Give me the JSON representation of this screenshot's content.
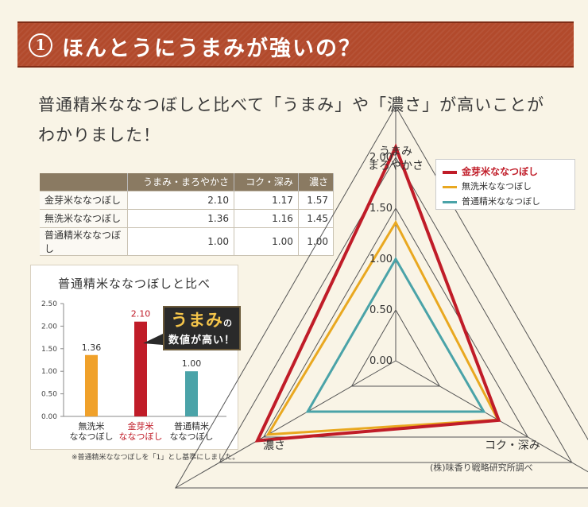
{
  "banner": {
    "number": "1",
    "title": "ほんとうにうまみが強いの？"
  },
  "lead": {
    "line1": "普通精米ななつぼしと比べて「うまみ」や「濃さ」が高いことが",
    "line2": "わかりました！"
  },
  "table": {
    "headers": [
      "",
      "うまみ・まろやかさ",
      "コク・深み",
      "濃さ"
    ],
    "rows": [
      {
        "name": "金芽米ななつぼし",
        "values": [
          "2.10",
          "1.17",
          "1.57"
        ]
      },
      {
        "name": "無洗米ななつぼし",
        "values": [
          "1.36",
          "1.16",
          "1.45"
        ]
      },
      {
        "name": "普通精米ななつぼし",
        "values": [
          "1.00",
          "1.00",
          "1.00"
        ]
      }
    ]
  },
  "callout": {
    "big": "うまみ",
    "particle": "の",
    "sub": "数値が高い！"
  },
  "footnote": "※普通精米ななつぼしを「1」とし基準にしました。",
  "source": "(株)味香り戦略研究所調べ",
  "colors": {
    "kinme": "#c01c28",
    "musen": "#e9a820",
    "futsu": "#4aa3a8",
    "banner": "#b24a2c"
  },
  "chart_data": [
    {
      "type": "bar",
      "title": "普通精米ななつぼしと比べ",
      "categories": [
        "無洗米\nななつぼし",
        "金芽米\nななつぼし",
        "普通精米\nななつぼし"
      ],
      "category_lines": [
        [
          "無洗米",
          "ななつぼし"
        ],
        [
          "金芽米",
          "ななつぼし"
        ],
        [
          "普通精米",
          "ななつぼし"
        ]
      ],
      "values": [
        1.36,
        2.1,
        1.0
      ],
      "value_labels": [
        "1.36",
        "2.10",
        "1.00"
      ],
      "colors": [
        "#f0a12a",
        "#c01c28",
        "#4aa3a8"
      ],
      "label_colors": [
        "#333333",
        "#c01c28",
        "#333333"
      ],
      "yticks": [
        "0.00",
        "0.50",
        "1.00",
        "1.50",
        "2.00",
        "2.50"
      ],
      "ylim": [
        0,
        2.5
      ]
    },
    {
      "type": "radar",
      "axes": [
        {
          "lines": [
            "うまみ",
            "まろやかさ"
          ]
        },
        {
          "lines": [
            "コク・深み"
          ]
        },
        {
          "lines": [
            "濃さ"
          ]
        }
      ],
      "rlim": [
        0,
        2.0
      ],
      "rticks": [
        "0.00",
        "0.50",
        "1.00",
        "1.50",
        "2.00"
      ],
      "series": [
        {
          "name": "金芽米ななつぼし",
          "values": [
            2.1,
            1.17,
            1.57
          ],
          "color": "#c01c28"
        },
        {
          "name": "無洗米ななつぼし",
          "values": [
            1.36,
            1.16,
            1.45
          ],
          "color": "#e9a820"
        },
        {
          "name": "普通精米ななつぼし",
          "values": [
            1.0,
            1.0,
            1.0
          ],
          "color": "#4aa3a8"
        }
      ]
    }
  ]
}
